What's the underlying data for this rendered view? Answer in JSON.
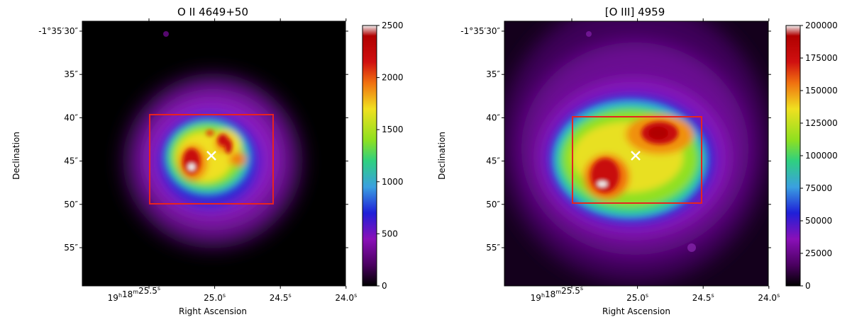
{
  "panels": [
    {
      "title": "O II 4649+50",
      "ylabel": "Declination",
      "xlabel": "Right Ascension",
      "yticks": [
        {
          "label": "-1°35′30″",
          "v": 30
        },
        {
          "label": "35″",
          "v": 35
        },
        {
          "label": "40″",
          "v": 40
        },
        {
          "label": "45″",
          "v": 45
        },
        {
          "label": "50″",
          "v": 50
        },
        {
          "label": "55″",
          "v": 55
        }
      ],
      "xticks": [
        {
          "main": "19",
          "h": "h",
          "mid": "18",
          "m": "m",
          "sec": "25.5",
          "s": "s",
          "v": 25.5
        },
        {
          "main": "25.0",
          "s": "s",
          "v": 25.0
        },
        {
          "main": "24.5",
          "s": "s",
          "v": 24.5
        },
        {
          "main": "24.0",
          "s": "s",
          "v": 24.0
        }
      ],
      "colorbar": {
        "min": 0,
        "max": 2500,
        "ticks": [
          "0",
          "500",
          "1000",
          "1500",
          "2000",
          "2500"
        ]
      }
    },
    {
      "title": "[O III] 4959",
      "ylabel": "Declination",
      "xlabel": "Right Ascension",
      "yticks": [
        {
          "label": "-1°35′30″",
          "v": 30
        },
        {
          "label": "35″",
          "v": 35
        },
        {
          "label": "40″",
          "v": 40
        },
        {
          "label": "45″",
          "v": 45
        },
        {
          "label": "50″",
          "v": 50
        },
        {
          "label": "55″",
          "v": 55
        }
      ],
      "xticks": [
        {
          "main": "19",
          "h": "h",
          "mid": "18",
          "m": "m",
          "sec": "25.5",
          "s": "s",
          "v": 25.5
        },
        {
          "main": "25.0",
          "s": "s",
          "v": 25.0
        },
        {
          "main": "24.5",
          "s": "s",
          "v": 24.5
        },
        {
          "main": "24.0",
          "s": "s",
          "v": 24.0
        }
      ],
      "colorbar": {
        "min": 0,
        "max": 200000,
        "ticks": [
          "0",
          "25000",
          "50000",
          "75000",
          "100000",
          "125000",
          "150000",
          "175000",
          "200000"
        ]
      }
    }
  ],
  "colors": {
    "box": "#e8231f",
    "marker": "#ffffff",
    "colormap": [
      "#000000",
      "#4a0060",
      "#8a10b8",
      "#1f1fd8",
      "#3aa0e0",
      "#2fd080",
      "#8ee020",
      "#f0e020",
      "#f07010",
      "#d01010",
      "#b00000",
      "#f0f0f0"
    ]
  }
}
